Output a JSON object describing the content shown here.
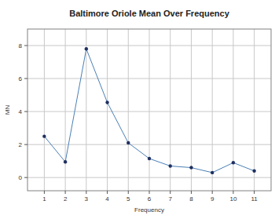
{
  "chart_data": {
    "type": "line",
    "title": "Baltimore Oriole Mean Over Frequency",
    "x_label": "Frequency",
    "y_label": "MN",
    "x": [
      1,
      2,
      3,
      4,
      5,
      6,
      7,
      8,
      9,
      10,
      11
    ],
    "values": [
      2.5,
      0.95,
      7.8,
      4.55,
      2.1,
      1.15,
      0.7,
      0.6,
      0.3,
      0.9,
      0.4
    ],
    "color": "#4a7fb5",
    "marker": "circle",
    "line_style": "solid",
    "xlim": [
      0.2,
      11.8
    ],
    "xticks": [
      1,
      2,
      3,
      4,
      5,
      6,
      7,
      8,
      9,
      10,
      11
    ],
    "ylim": [
      -0.8,
      9
    ],
    "yticks": [
      0,
      2,
      4,
      6,
      8
    ],
    "grid": true
  }
}
